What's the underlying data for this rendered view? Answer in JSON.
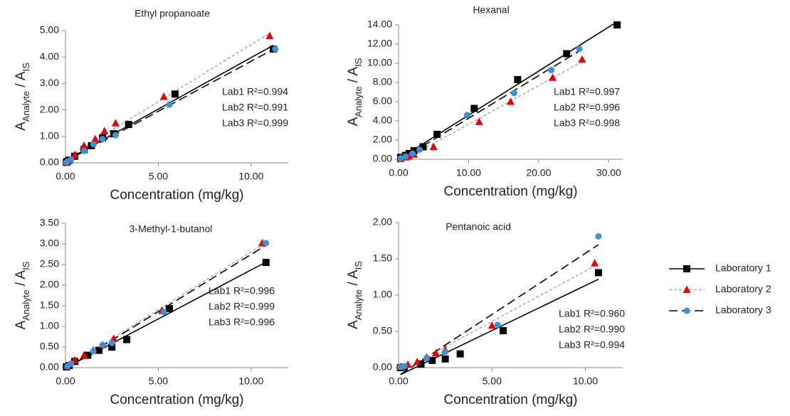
{
  "chart_data": [
    {
      "type": "scatter",
      "title": "Ethyl propanoate",
      "x_label": "Concentration (mg/kg)",
      "y_label": [
        {
          "text": "A"
        },
        {
          "text": "Analyte",
          "sub": true
        },
        {
          "text": " / A"
        },
        {
          "text": "IS",
          "sub": true
        }
      ],
      "xlim": [
        0,
        12
      ],
      "xticks": [
        {
          "value": 0,
          "label": "0.00"
        },
        {
          "value": 5,
          "label": "5.00"
        },
        {
          "value": 10,
          "label": "10.00"
        }
      ],
      "ylim": [
        0,
        5
      ],
      "yticks": [
        {
          "value": 0,
          "label": "0.00"
        },
        {
          "value": 1,
          "label": "1.00"
        },
        {
          "value": 2,
          "label": "2.00"
        },
        {
          "value": 3,
          "label": "3.00"
        },
        {
          "value": 4,
          "label": "4.00"
        },
        {
          "value": 5,
          "label": "5.00"
        }
      ],
      "annotations": [
        "Lab1 R²=0.994",
        "Lab2 R²=0.991",
        "Lab3 R²=0.999"
      ],
      "series": [
        {
          "name": "Laboratory 1",
          "color": "#000000",
          "marker": "square",
          "line_color": "#000000",
          "line_style": "solid",
          "x": [
            0.05,
            0.1,
            0.2,
            0.5,
            1.0,
            1.4,
            2.0,
            2.6,
            3.4,
            5.9,
            11.2
          ],
          "values": [
            0.02,
            0.05,
            0.1,
            0.25,
            0.5,
            0.65,
            0.95,
            1.1,
            1.45,
            2.6,
            4.3
          ]
        },
        {
          "name": "Laboratory 2",
          "color": "#e8000b",
          "marker": "triangle",
          "line_color": "#999999",
          "line_style": "dotted",
          "x": [
            0.05,
            0.2,
            0.5,
            1.0,
            1.6,
            2.1,
            2.7,
            5.3,
            11.0
          ],
          "values": [
            0.03,
            0.1,
            0.3,
            0.65,
            0.9,
            1.2,
            1.5,
            2.5,
            4.8
          ]
        },
        {
          "name": "Laboratory 3",
          "color": "#3d8fd6",
          "marker": "circle",
          "line_color": "#000000",
          "line_style": "dashed",
          "x": [
            0.05,
            0.1,
            0.3,
            1.0,
            1.5,
            2.0,
            2.7,
            5.6,
            11.3
          ],
          "values": [
            0.02,
            0.05,
            0.12,
            0.45,
            0.7,
            0.9,
            1.05,
            2.2,
            4.3
          ]
        }
      ]
    },
    {
      "type": "scatter",
      "title": "Hexanal",
      "x_label": "Concentration (mg/kg)",
      "y_label": [
        {
          "text": "A"
        },
        {
          "text": "Analyte",
          "sub": true
        },
        {
          "text": " / A"
        },
        {
          "text": "IS",
          "sub": true
        }
      ],
      "xlim": [
        0,
        32
      ],
      "xticks": [
        {
          "value": 0,
          "label": "0.00"
        },
        {
          "value": 10,
          "label": "10.00"
        },
        {
          "value": 20,
          "label": "20.00"
        },
        {
          "value": 30,
          "label": "30.00"
        }
      ],
      "ylim": [
        0,
        14
      ],
      "yticks": [
        {
          "value": 0,
          "label": "0.00"
        },
        {
          "value": 2,
          "label": "2.00"
        },
        {
          "value": 4,
          "label": "4.00"
        },
        {
          "value": 6,
          "label": "6.00"
        },
        {
          "value": 8,
          "label": "8.00"
        },
        {
          "value": 10,
          "label": "10.00"
        },
        {
          "value": 12,
          "label": "12.00"
        },
        {
          "value": 14,
          "label": "14.00"
        }
      ],
      "annotations": [
        "Lab1 R²=0.997",
        "Lab2 R²=0.996",
        "Lab3 R²=0.998"
      ],
      "series": [
        {
          "name": "Laboratory 1",
          "color": "#000000",
          "marker": "square",
          "line_color": "#000000",
          "line_style": "solid",
          "x": [
            0.3,
            1,
            1.5,
            2.2,
            3.5,
            5.5,
            10.8,
            17,
            24,
            31.2
          ],
          "values": [
            0.2,
            0.4,
            0.6,
            0.9,
            1.3,
            2.6,
            5.3,
            8.3,
            11,
            14
          ]
        },
        {
          "name": "Laboratory 2",
          "color": "#e8000b",
          "marker": "triangle",
          "line_color": "#999999",
          "line_style": "dotted",
          "x": [
            0.3,
            1,
            1.5,
            2.2,
            5,
            11.5,
            16,
            22,
            26.2
          ],
          "values": [
            0.05,
            0.2,
            0.3,
            0.5,
            1.3,
            3.9,
            6,
            8.5,
            10.4
          ]
        },
        {
          "name": "Laboratory 3",
          "color": "#3d8fd6",
          "marker": "circle",
          "line_color": "#000000",
          "line_style": "dashed",
          "x": [
            0.3,
            1,
            2,
            3,
            9.8,
            16.5,
            21.8,
            25.8
          ],
          "values": [
            0.1,
            0.3,
            0.6,
            1,
            4.6,
            6.9,
            9.3,
            11.5
          ]
        }
      ]
    },
    {
      "type": "scatter",
      "title": "3-Methyl-1-butanol",
      "x_label": "Concentration (mg/kg)",
      "y_label": [
        {
          "text": "A"
        },
        {
          "text": "Analyte",
          "sub": true
        },
        {
          "text": " / A"
        },
        {
          "text": "IS",
          "sub": true
        }
      ],
      "xlim": [
        0,
        12
      ],
      "xticks": [
        {
          "value": 0,
          "label": "0.00"
        },
        {
          "value": 5,
          "label": "5.00"
        },
        {
          "value": 10,
          "label": "10.00"
        }
      ],
      "ylim": [
        0,
        3.5
      ],
      "yticks": [
        {
          "value": 0,
          "label": "0.00"
        },
        {
          "value": 0.5,
          "label": "0.50"
        },
        {
          "value": 1,
          "label": "1.00"
        },
        {
          "value": 1.5,
          "label": "1.50"
        },
        {
          "value": 2,
          "label": "2.00"
        },
        {
          "value": 2.5,
          "label": "2.50"
        },
        {
          "value": 3,
          "label": "3.00"
        },
        {
          "value": 3.5,
          "label": "3.50"
        }
      ],
      "annotations": [
        "Lab1 R²=0.996",
        "Lab2 R²=0.999",
        "Lab3 R²=0.996"
      ],
      "series": [
        {
          "name": "Laboratory 1",
          "color": "#000000",
          "marker": "square",
          "line_color": "#000000",
          "line_style": "solid",
          "x": [
            0.05,
            0.2,
            0.5,
            1.2,
            1.8,
            2.5,
            3.3,
            5.6,
            10.8
          ],
          "values": [
            0.02,
            0.05,
            0.15,
            0.3,
            0.42,
            0.5,
            0.68,
            1.43,
            2.55
          ]
        },
        {
          "name": "Laboratory 2",
          "color": "#e8000b",
          "marker": "triangle",
          "line_color": "#999999",
          "line_style": "dotted",
          "x": [
            0.1,
            0.5,
            1.0,
            1.5,
            2.0,
            2.6,
            5.2,
            10.6
          ],
          "values": [
            0.05,
            0.18,
            0.3,
            0.42,
            0.55,
            0.7,
            1.38,
            3.02
          ]
        },
        {
          "name": "Laboratory 3",
          "color": "#3d8fd6",
          "marker": "circle",
          "line_color": "#000000",
          "line_style": "dashed",
          "x": [
            0.1,
            0.3,
            1.5,
            2.0,
            2.5,
            5.3,
            10.8
          ],
          "values": [
            0.03,
            0.1,
            0.4,
            0.55,
            0.6,
            1.35,
            3.02
          ]
        }
      ]
    },
    {
      "type": "scatter",
      "title": "Pentanoic acid",
      "x_label": "Concentration (mg/kg)",
      "y_label": [
        {
          "text": "A"
        },
        {
          "text": "Analyte",
          "sub": true
        },
        {
          "text": " / A"
        },
        {
          "text": "IS",
          "sub": true
        }
      ],
      "xlim": [
        0,
        12
      ],
      "xticks": [
        {
          "value": 0,
          "label": "0.00"
        },
        {
          "value": 5,
          "label": "5.00"
        },
        {
          "value": 10,
          "label": "10.00"
        }
      ],
      "ylim": [
        0,
        2
      ],
      "yticks": [
        {
          "value": 0,
          "label": "0.00"
        },
        {
          "value": 0.5,
          "label": "0.50"
        },
        {
          "value": 1,
          "label": "1.00"
        },
        {
          "value": 1.5,
          "label": "1.50"
        },
        {
          "value": 2,
          "label": "2.00"
        }
      ],
      "annotations": [
        "Lab1 R²=0.960",
        "Lab2 R²=0.990",
        "Lab3 R²=0.994"
      ],
      "series": [
        {
          "name": "Laboratory 1",
          "color": "#000000",
          "marker": "square",
          "line_color": "#000000",
          "line_style": "solid",
          "x": [
            0.1,
            0.3,
            1.2,
            1.8,
            2.5,
            3.3,
            5.6,
            10.7
          ],
          "values": [
            0.0,
            0.01,
            0.05,
            0.1,
            0.12,
            0.19,
            0.51,
            1.31
          ]
        },
        {
          "name": "Laboratory 2",
          "color": "#e8000b",
          "marker": "triangle",
          "line_color": "#999999",
          "line_style": "dotted",
          "x": [
            0.1,
            0.5,
            1.0,
            1.5,
            2.0,
            2.5,
            5.0,
            10.5
          ],
          "values": [
            0.01,
            0.04,
            0.08,
            0.14,
            0.2,
            0.25,
            0.58,
            1.44
          ]
        },
        {
          "name": "Laboratory 3",
          "color": "#3d8fd6",
          "marker": "circle",
          "line_color": "#000000",
          "line_style": "dashed",
          "x": [
            0.1,
            0.3,
            1.5,
            2.5,
            5.3,
            10.7
          ],
          "values": [
            0.01,
            0.02,
            0.13,
            0.22,
            0.59,
            1.81
          ]
        }
      ]
    }
  ]
}
